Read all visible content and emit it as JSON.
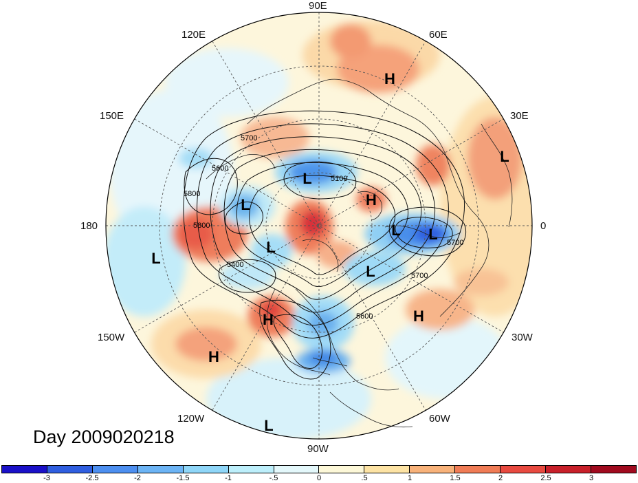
{
  "title": "Day 2009020218",
  "longitude_labels": [
    {
      "name": "lon-90e",
      "text": "90E"
    },
    {
      "name": "lon-60e",
      "text": "60E"
    },
    {
      "name": "lon-120e",
      "text": "120E"
    },
    {
      "name": "lon-150e",
      "text": "150E"
    },
    {
      "name": "lon-30e",
      "text": "30E"
    },
    {
      "name": "lon-180",
      "text": "180"
    },
    {
      "name": "lon-0",
      "text": "0"
    },
    {
      "name": "lon-150w",
      "text": "150W"
    },
    {
      "name": "lon-30w",
      "text": "30W"
    },
    {
      "name": "lon-120w",
      "text": "120W"
    },
    {
      "name": "lon-60w",
      "text": "60W"
    },
    {
      "name": "lon-90w",
      "text": "90W"
    }
  ],
  "pressure_centers": [
    {
      "type": "H"
    },
    {
      "type": "L"
    },
    {
      "type": "L"
    },
    {
      "type": "L"
    },
    {
      "type": "H"
    },
    {
      "type": "L"
    },
    {
      "type": "L"
    },
    {
      "type": "L"
    },
    {
      "type": "L"
    },
    {
      "type": "L"
    },
    {
      "type": "H"
    },
    {
      "type": "H"
    },
    {
      "type": "H"
    },
    {
      "type": "L"
    }
  ],
  "contour_labels": [
    "5700",
    "5600",
    "5800",
    "5800",
    "5100",
    "5400",
    "5700",
    "5700",
    "5600"
  ],
  "colorbar": {
    "colors": [
      "#1a10c8",
      "#2f5ee0",
      "#4d8ff0",
      "#6cb4f5",
      "#8fd6f8",
      "#bdeffb",
      "#e4f8fb",
      "#fdf8d8",
      "#fde3a4",
      "#f8b27a",
      "#f07c56",
      "#e84a40",
      "#c8202a",
      "#a00a1e"
    ],
    "ticks": [
      "-3",
      "-2.5",
      "-2",
      "-1.5",
      "-1",
      "-.5",
      "0",
      ".5",
      "1",
      "1.5",
      "2",
      "2.5",
      "3"
    ]
  }
}
